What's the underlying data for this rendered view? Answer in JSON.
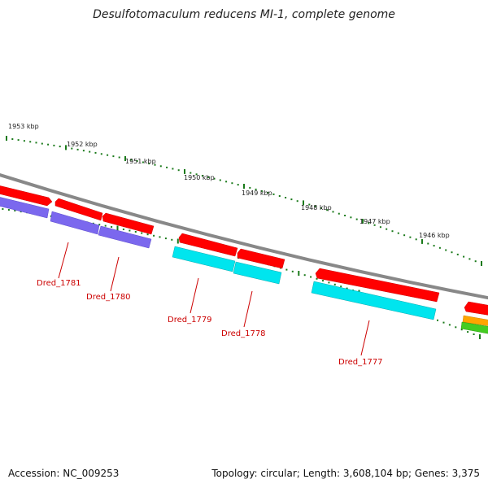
{
  "title": "Desulfotomaculum reducens MI-1, complete genome",
  "footer": {
    "accession": "Accession: NC_009253",
    "summary": "Topology: circular; Length: 3,608,104 bp; Genes: 3,375"
  },
  "ruler": {
    "ticks": [
      {
        "label": "1953 kbp"
      },
      {
        "label": "1952 kbp"
      },
      {
        "label": "1951 kbp"
      },
      {
        "label": "1950 kbp"
      },
      {
        "label": "1949 kbp"
      },
      {
        "label": "1948 kbp"
      },
      {
        "label": "1947 kbp"
      },
      {
        "label": "1946 kbp"
      }
    ]
  },
  "genes": [
    {
      "name": "Dred_1781"
    },
    {
      "name": "Dred_1780"
    },
    {
      "name": "Dred_1779"
    },
    {
      "name": "Dred_1778"
    },
    {
      "name": "Dred_1777"
    }
  ],
  "colors": {
    "backbone": "#888888",
    "cds_red": "#ff0000",
    "cds_purple": "#7b68ee",
    "cds_cyan": "#00e5ee",
    "cds_orange": "#ffa500",
    "cds_green": "#44cc22",
    "tick_green": "#1a7a1a",
    "label_red": "#cc0000"
  }
}
